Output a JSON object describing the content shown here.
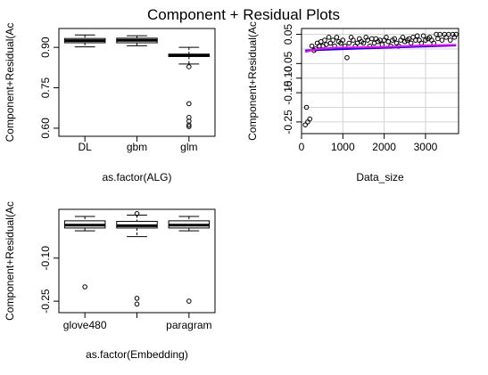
{
  "title": "Component + Residual Plots",
  "chart_data": [
    {
      "type": "boxplot",
      "xlabel": "as.factor(ALG)",
      "ylabel": "Component+Residual(Ac",
      "ylim": [
        0.57,
        0.97
      ],
      "yticks": [
        "0.60",
        "0.75",
        "0.90"
      ],
      "ytick_values": [
        0.6,
        0.75,
        0.9
      ],
      "categories": [
        "DL",
        "gbm",
        "glm"
      ],
      "boxes": [
        {
          "whisker_low": 0.902,
          "q1": 0.917,
          "median": 0.925,
          "q3": 0.933,
          "whisker_high": 0.946,
          "outliers": []
        },
        {
          "whisker_low": 0.906,
          "q1": 0.917,
          "median": 0.926,
          "q3": 0.934,
          "whisker_high": 0.943,
          "outliers": []
        },
        {
          "whisker_low": 0.838,
          "q1": 0.866,
          "median": 0.871,
          "q3": 0.875,
          "whisker_high": 0.9,
          "outliers": [
            0.828,
            0.691,
            0.64,
            0.626,
            0.612,
            0.606
          ]
        }
      ]
    },
    {
      "type": "scatter",
      "xlabel": "Data_size",
      "ylabel": "Component+Residual(Ac",
      "xlim": [
        0,
        3800
      ],
      "ylim": [
        -0.29,
        0.07
      ],
      "xticks": [
        0,
        1000,
        2000,
        3000
      ],
      "yticks": [
        "-0.25",
        "-0.15",
        "-0.10",
        "-0.05",
        "0.05"
      ],
      "ytick_values": [
        -0.25,
        -0.15,
        -0.1,
        -0.05,
        0.05
      ],
      "grid": true,
      "series": [
        {
          "name": "",
          "color": "#000000",
          "marker": "circle",
          "x": [
            90,
            120,
            150,
            200,
            250,
            300,
            340,
            380,
            430,
            470,
            520,
            560,
            600,
            660,
            700,
            760,
            800,
            850,
            900,
            950,
            1000,
            1050,
            1100,
            1150,
            1200,
            1250,
            1300,
            1350,
            1400,
            1450,
            1500,
            1560,
            1600,
            1650,
            1700,
            1760,
            1800,
            1850,
            1900,
            1950,
            2000,
            2050,
            2100,
            2160,
            2200,
            2250,
            2300,
            2350,
            2400,
            2450,
            2500,
            2560,
            2600,
            2650,
            2700,
            2760,
            2800,
            2850,
            2900,
            2950,
            3000,
            3060,
            3100,
            3150,
            3200,
            3260,
            3300,
            3350,
            3400,
            3460,
            3500,
            3560,
            3600,
            3660,
            3700,
            3740
          ],
          "y": [
            -0.26,
            -0.2,
            -0.25,
            -0.24,
            0.01,
            -0.005,
            0.0,
            0.02,
            0.01,
            0.025,
            0.01,
            0.03,
            0.015,
            0.04,
            0.02,
            0.03,
            0.01,
            0.04,
            0.025,
            0.02,
            0.03,
            0.01,
            -0.03,
            0.02,
            0.04,
            0.03,
            0.01,
            0.02,
            0.035,
            0.025,
            0.02,
            0.04,
            0.03,
            0.01,
            0.035,
            0.02,
            0.035,
            0.025,
            0.03,
            0.015,
            0.03,
            0.04,
            0.025,
            0.01,
            0.03,
            0.035,
            0.02,
            0.01,
            0.03,
            0.04,
            0.025,
            0.03,
            0.035,
            0.02,
            0.04,
            0.03,
            0.045,
            0.03,
            0.02,
            0.045,
            0.03,
            0.035,
            0.04,
            0.03,
            0.02,
            0.05,
            0.035,
            0.05,
            0.03,
            0.05,
            0.04,
            0.05,
            0.03,
            0.05,
            0.04,
            0.05
          ]
        }
      ],
      "lines": [
        {
          "name": "component line",
          "color": "#0000ff",
          "x": [
            90,
            3740
          ],
          "y": [
            -0.005,
            0.012
          ]
        },
        {
          "name": "residual smooth",
          "color": "#ff00ff",
          "x": [
            90,
            400,
            800,
            1500,
            2200,
            3000,
            3740
          ],
          "y": [
            -0.01,
            0.0,
            0.004,
            0.006,
            0.008,
            0.012,
            0.014
          ]
        }
      ]
    },
    {
      "type": "boxplot",
      "xlabel": "as.factor(Embedding)",
      "ylabel": "Component+Residual(Ac",
      "ylim": [
        -0.29,
        0.07
      ],
      "yticks": [
        "-0.25",
        "-0.10"
      ],
      "ytick_values": [
        -0.25,
        -0.1
      ],
      "categories": [
        "glove480",
        "",
        "paragram"
      ],
      "boxes": [
        {
          "whisker_low": -0.005,
          "q1": 0.005,
          "median": 0.015,
          "q3": 0.03,
          "whisker_high": 0.045,
          "outliers": [
            -0.2
          ]
        },
        {
          "whisker_low": -0.025,
          "q1": 0.005,
          "median": 0.013,
          "q3": 0.028,
          "whisker_high": 0.05,
          "outliers": [
            0.055,
            -0.24,
            -0.26
          ]
        },
        {
          "whisker_low": -0.005,
          "q1": 0.005,
          "median": 0.015,
          "q3": 0.03,
          "whisker_high": 0.045,
          "outliers": [
            -0.25
          ]
        }
      ]
    }
  ]
}
